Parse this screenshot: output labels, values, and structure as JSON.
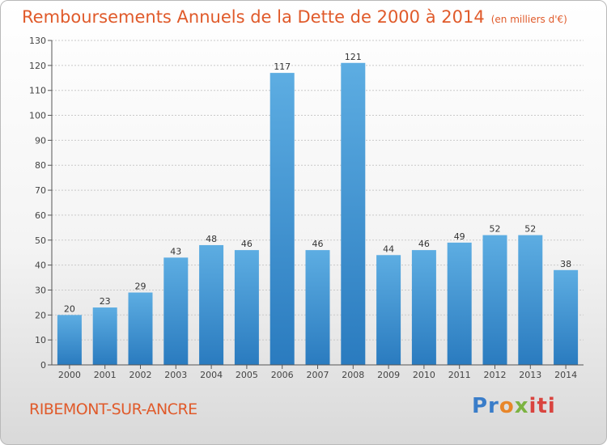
{
  "chart_data": {
    "type": "bar",
    "title": "Remboursements Annuels de la Dette de 2000 à 2014",
    "unit_note": "(en milliers d'€)",
    "categories": [
      "2000",
      "2001",
      "2002",
      "2003",
      "2004",
      "2005",
      "2006",
      "2007",
      "2008",
      "2009",
      "2010",
      "2011",
      "2012",
      "2013",
      "2014"
    ],
    "values": [
      20,
      23,
      29,
      43,
      48,
      46,
      117,
      46,
      121,
      44,
      46,
      49,
      52,
      52,
      38
    ],
    "ylim": [
      0,
      130
    ],
    "yticks": [
      0,
      10,
      20,
      30,
      40,
      50,
      60,
      70,
      80,
      90,
      100,
      110,
      120,
      130
    ],
    "grid": true,
    "bar_color_top": "#5dade2",
    "bar_color_bottom": "#2a7bbf"
  },
  "footer": {
    "city": "RIBEMONT-SUR-ANCRE",
    "logo_parts": [
      "Pr",
      "o",
      "x",
      "iti"
    ]
  }
}
